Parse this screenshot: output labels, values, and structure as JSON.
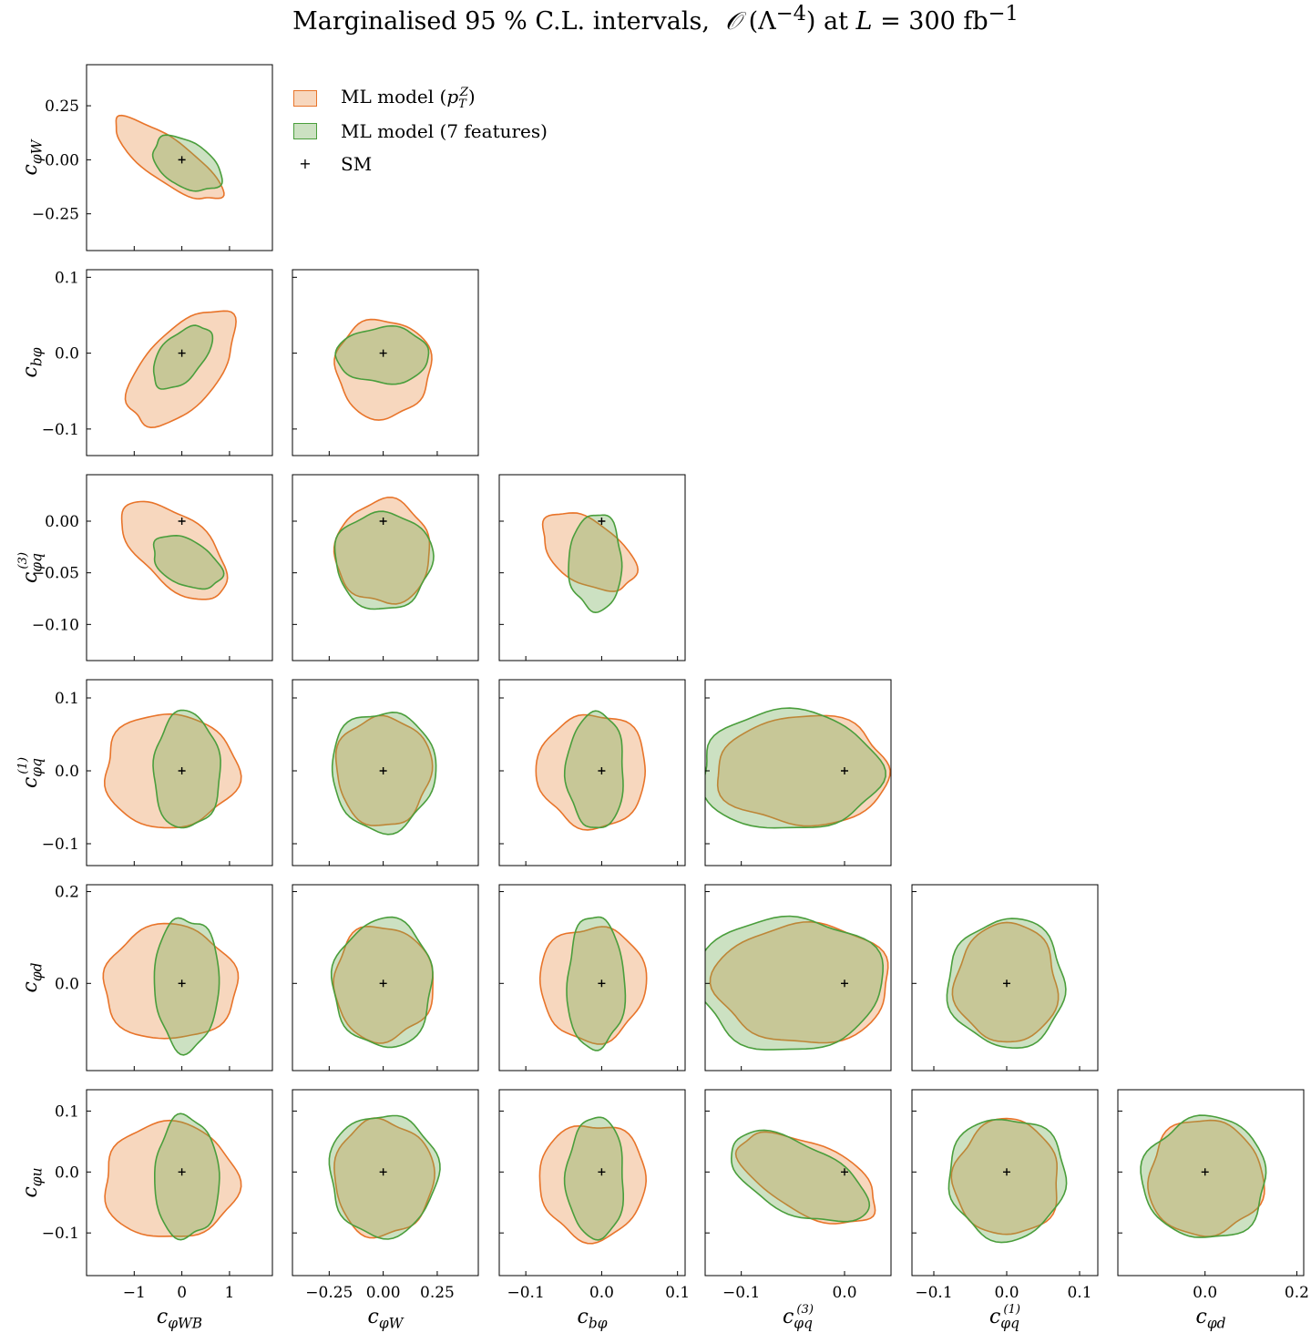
{
  "title": "Marginalised 95 % C.L. intervals,  O (Λ⁻⁴) at L = 300 fb⁻¹",
  "legend": {
    "items": [
      {
        "label": "ML model (p_T^Z)",
        "color": "#e67e22",
        "fill": "#f0c9a8"
      },
      {
        "label": "ML model (7 features)",
        "color": "#4a9a3a",
        "fill": "#b8d8a8"
      },
      {
        "label": "SM",
        "marker": "+"
      }
    ]
  },
  "colors": {
    "orange_line": "#e8742a",
    "orange_fill": "rgba(232,140,70,0.35)",
    "green_line": "#4a9e3c",
    "green_fill": "rgba(110,170,80,0.35)"
  },
  "chart_data": {
    "type": "corner",
    "parameters": [
      {
        "name": "cφWB",
        "label": "c_{φWB}",
        "range": [
          -2.0,
          1.9
        ],
        "ticks": [
          -1,
          0,
          1
        ],
        "ticklabels": [
          "−1",
          "0",
          "1"
        ]
      },
      {
        "name": "cφW",
        "label": "c_{φW}",
        "range": [
          -0.42,
          0.44
        ],
        "ticks": [
          -0.25,
          0.0,
          0.25
        ],
        "ticklabels": [
          "−0.25",
          "0.00",
          "0.25"
        ]
      },
      {
        "name": "cbφ",
        "label": "c_{bφ}",
        "range": [
          -0.135,
          0.11
        ],
        "ticks": [
          -0.1,
          0.0,
          0.1
        ],
        "ticklabels": [
          "−0.1",
          "0.0",
          "0.1"
        ]
      },
      {
        "name": "cφq(3)",
        "label": "c_{φq}^{(3)}",
        "range": [
          -0.135,
          0.045
        ],
        "ticks": [
          -0.1,
          -0.05,
          0.0
        ],
        "ticklabels": [
          "−0.10",
          "−0.05",
          "0.00"
        ],
        "xticks": [
          -0.1,
          0.0
        ],
        "xticklabels": [
          "−0.1",
          "0.0"
        ]
      },
      {
        "name": "cφq(1)",
        "label": "c_{φq}^{(1)}",
        "range": [
          -0.13,
          0.125
        ],
        "ticks": [
          -0.1,
          0.0,
          0.1
        ],
        "ticklabels": [
          "−0.1",
          "0.0",
          "0.1"
        ]
      },
      {
        "name": "cφd",
        "label": "c_{φd}",
        "range": [
          -0.19,
          0.215
        ],
        "ticks": [
          0.0,
          0.2
        ],
        "ticklabels": [
          "0.0",
          "0.2"
        ]
      },
      {
        "name": "cφu",
        "label": "c_{φu}",
        "range": [
          -0.17,
          0.135
        ],
        "ticks": [
          -0.1,
          0.0,
          0.1
        ],
        "ticklabels": [
          "−0.1",
          "0.0",
          "0.1"
        ]
      }
    ],
    "x_parameters": [
      "cφWB",
      "cφW",
      "cbφ",
      "cφq(3)",
      "cφq(1)",
      "cφd"
    ],
    "y_parameters": [
      "cφW",
      "cbφ",
      "cφq(3)",
      "cφq(1)",
      "cφd",
      "cφu"
    ],
    "sm_point": "all coefficients = 0",
    "series": [
      {
        "name": "ML model (p_T^Z)",
        "style": "orange"
      },
      {
        "name": "ML model (7 features)",
        "style": "green"
      }
    ],
    "panels": [
      {
        "x": "cφWB",
        "y": "cφW",
        "orange": {
          "center": [
            -0.3,
            0.0
          ],
          "half_major": [
            1.6,
            0.14
          ],
          "half_minor": [
            0.3,
            0.13
          ],
          "corr": -0.62
        },
        "green": {
          "center": [
            0.1,
            -0.02
          ],
          "hx": 0.7,
          "hy": 0.22,
          "rot": -0.55
        }
      },
      {
        "x": "cφWB",
        "y": "cbφ",
        "orange": {
          "center": [
            0.0,
            -0.02
          ],
          "hx": 1.6,
          "hy": 0.085,
          "rot": 0.85
        },
        "green": {
          "center": [
            0.0,
            -0.005
          ],
          "hx": 0.95,
          "hy": 0.04,
          "rot": 0.85
        }
      },
      {
        "x": "cφW",
        "y": "cbφ",
        "orange": {
          "center": [
            0.0,
            -0.02
          ],
          "hx": 0.22,
          "hy": 0.065
        },
        "green": {
          "center": [
            0.0,
            -0.003
          ],
          "hx": 0.215,
          "hy": 0.037
        }
      },
      {
        "x": "cφWB",
        "y": "cφq(3)",
        "orange": {
          "center": [
            -0.15,
            -0.028
          ],
          "hx": 1.45,
          "hy": 0.055,
          "rot": -0.72
        },
        "green": {
          "center": [
            0.1,
            -0.04
          ],
          "hx": 0.7,
          "hy": 0.047,
          "rot": -0.5
        }
      },
      {
        "x": "cφW",
        "y": "cφq(3)",
        "orange": {
          "center": [
            0.0,
            -0.03
          ],
          "hx": 0.22,
          "hy": 0.05
        },
        "green": {
          "center": [
            0.0,
            -0.038
          ],
          "hx": 0.225,
          "hy": 0.047
        }
      },
      {
        "x": "cbφ",
        "y": "cφq(3)",
        "orange": {
          "center": [
            -0.018,
            -0.03
          ],
          "hx": 0.07,
          "hy": 0.05,
          "rot": -0.6
        },
        "green": {
          "center": [
            -0.008,
            -0.04
          ],
          "hx": 0.035,
          "hy": 0.047
        }
      },
      {
        "x": "cφWB",
        "y": "cφq(1)",
        "orange": {
          "center": [
            -0.25,
            0.0
          ],
          "hx": 1.4,
          "hy": 0.078
        },
        "green": {
          "center": [
            0.1,
            0.0
          ],
          "hx": 0.7,
          "hy": 0.08
        }
      },
      {
        "x": "cφW",
        "y": "cφq(1)",
        "orange": {
          "center": [
            0.0,
            0.0
          ],
          "hx": 0.22,
          "hy": 0.075
        },
        "green": {
          "center": [
            0.0,
            0.0
          ],
          "hx": 0.24,
          "hy": 0.082
        }
      },
      {
        "x": "cbφ",
        "y": "cφq(1)",
        "orange": {
          "center": [
            -0.012,
            0.0
          ],
          "hx": 0.072,
          "hy": 0.078
        },
        "green": {
          "center": [
            -0.008,
            0.0
          ],
          "hx": 0.038,
          "hy": 0.08
        }
      },
      {
        "x": "cφq(3)",
        "y": "cφq(1)",
        "orange": {
          "center": [
            -0.04,
            0.0
          ],
          "hx": 0.083,
          "hy": 0.075
        },
        "green": {
          "center": [
            -0.053,
            0.0
          ],
          "hx": 0.087,
          "hy": 0.082
        }
      },
      {
        "x": "cφWB",
        "y": "cφd",
        "orange": {
          "center": [
            -0.25,
            0.0
          ],
          "hx": 1.4,
          "hy": 0.125
        },
        "green": {
          "center": [
            0.1,
            0.0
          ],
          "hx": 0.68,
          "hy": 0.145
        }
      },
      {
        "x": "cφW",
        "y": "cφd",
        "orange": {
          "center": [
            0.0,
            0.0
          ],
          "hx": 0.23,
          "hy": 0.125
        },
        "green": {
          "center": [
            0.0,
            0.0
          ],
          "hx": 0.23,
          "hy": 0.14
        }
      },
      {
        "x": "cbφ",
        "y": "cφd",
        "orange": {
          "center": [
            -0.012,
            0.0
          ],
          "hx": 0.07,
          "hy": 0.125
        },
        "green": {
          "center": [
            -0.008,
            0.0
          ],
          "hx": 0.038,
          "hy": 0.145
        }
      },
      {
        "x": "cφq(3)",
        "y": "cφd",
        "orange": {
          "center": [
            -0.04,
            0.0
          ],
          "hx": 0.085,
          "hy": 0.13
        },
        "green": {
          "center": [
            -0.053,
            0.0
          ],
          "hx": 0.09,
          "hy": 0.145
        }
      },
      {
        "x": "cφq(1)",
        "y": "cφd",
        "orange": {
          "center": [
            0.0,
            0.0
          ],
          "hx": 0.07,
          "hy": 0.13
        },
        "green": {
          "center": [
            0.0,
            0.0
          ],
          "hx": 0.08,
          "hy": 0.14
        }
      },
      {
        "x": "cφWB",
        "y": "cφu",
        "orange": {
          "center": [
            -0.25,
            -0.015
          ],
          "hx": 1.4,
          "hy": 0.095
        },
        "green": {
          "center": [
            0.1,
            -0.01
          ],
          "hx": 0.68,
          "hy": 0.1
        }
      },
      {
        "x": "cφW",
        "y": "cφu",
        "orange": {
          "center": [
            0.0,
            -0.01
          ],
          "hx": 0.23,
          "hy": 0.095
        },
        "green": {
          "center": [
            0.0,
            -0.005
          ],
          "hx": 0.25,
          "hy": 0.1
        }
      },
      {
        "x": "cbφ",
        "y": "cφu",
        "orange": {
          "center": [
            -0.012,
            -0.015
          ],
          "hx": 0.07,
          "hy": 0.095
        },
        "green": {
          "center": [
            -0.008,
            -0.01
          ],
          "hx": 0.038,
          "hy": 0.1
        }
      },
      {
        "x": "cφq(3)",
        "y": "cφu",
        "orange": {
          "center": [
            -0.035,
            -0.01
          ],
          "hx": 0.075,
          "hy": 0.1,
          "rot": -0.45
        },
        "green": {
          "center": [
            -0.045,
            -0.01
          ],
          "hx": 0.075,
          "hy": 0.1,
          "rot": -0.45
        }
      },
      {
        "x": "cφq(1)",
        "y": "cφu",
        "orange": {
          "center": [
            0.0,
            -0.01
          ],
          "hx": 0.072,
          "hy": 0.095
        },
        "green": {
          "center": [
            0.0,
            -0.01
          ],
          "hx": 0.08,
          "hy": 0.1
        }
      },
      {
        "x": "cφd",
        "y": "cφu",
        "orange": {
          "center": [
            0.0,
            -0.01
          ],
          "hx": 0.125,
          "hy": 0.095
        },
        "green": {
          "center": [
            0.0,
            -0.01
          ],
          "hx": 0.135,
          "hy": 0.1
        }
      }
    ]
  }
}
